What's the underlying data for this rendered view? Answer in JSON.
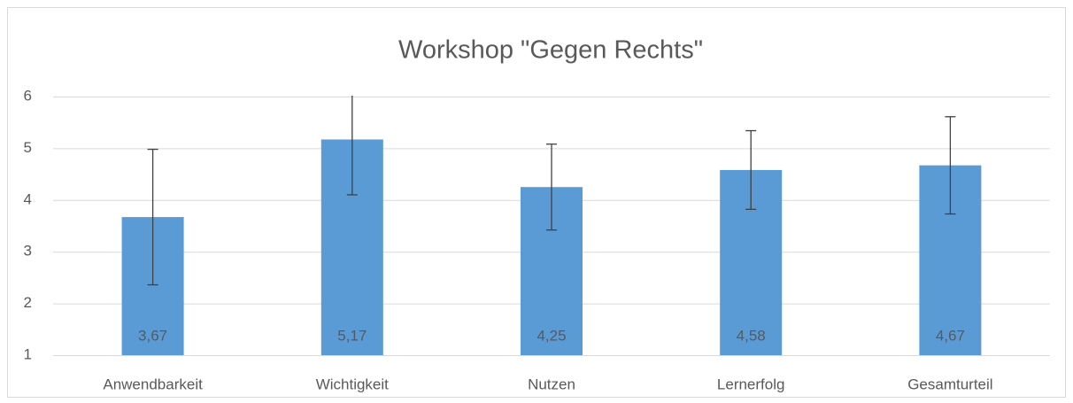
{
  "chart_data": {
    "type": "bar",
    "title": "Workshop \"Gegen Rechts\"",
    "categories": [
      "Anwendbarkeit",
      "Wichtigkeit",
      "Nutzen",
      "Lernerfolg",
      "Gesamturteil"
    ],
    "values": [
      3.67,
      5.17,
      4.25,
      4.58,
      4.67
    ],
    "value_labels": [
      "3,67",
      "5,17",
      "4,25",
      "4,58",
      "4,67"
    ],
    "errors": [
      1.31,
      1.07,
      0.83,
      0.76,
      0.94
    ],
    "color": "#5b9bd5",
    "ylim": [
      1,
      6
    ],
    "yticks": [
      1,
      2,
      3,
      4,
      5,
      6
    ],
    "grid": true
  }
}
